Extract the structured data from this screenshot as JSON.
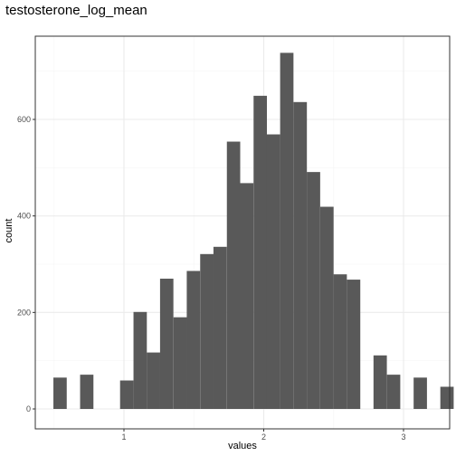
{
  "chart_data": {
    "type": "bar",
    "title": "testosterone_log_mean",
    "xlabel": "values",
    "ylabel": "count",
    "xlim": [
      0.5,
      3.2
    ],
    "ylim": [
      0,
      740
    ],
    "x_ticks": [
      1,
      2,
      3
    ],
    "y_ticks": [
      0,
      200,
      400,
      600
    ],
    "grid": true,
    "bin_width": 0.0954,
    "bins": [
      {
        "x": 0.543,
        "count": 65
      },
      {
        "x": 0.638,
        "count": 0
      },
      {
        "x": 0.734,
        "count": 71
      },
      {
        "x": 0.829,
        "count": 0
      },
      {
        "x": 0.925,
        "count": 0
      },
      {
        "x": 1.02,
        "count": 59
      },
      {
        "x": 1.116,
        "count": 201
      },
      {
        "x": 1.211,
        "count": 117
      },
      {
        "x": 1.306,
        "count": 270
      },
      {
        "x": 1.402,
        "count": 190
      },
      {
        "x": 1.497,
        "count": 286
      },
      {
        "x": 1.593,
        "count": 321
      },
      {
        "x": 1.688,
        "count": 336
      },
      {
        "x": 1.784,
        "count": 554
      },
      {
        "x": 1.879,
        "count": 468
      },
      {
        "x": 1.975,
        "count": 649
      },
      {
        "x": 2.07,
        "count": 569
      },
      {
        "x": 2.165,
        "count": 738
      },
      {
        "x": 2.261,
        "count": 636
      },
      {
        "x": 2.356,
        "count": 491
      },
      {
        "x": 2.452,
        "count": 419
      },
      {
        "x": 2.547,
        "count": 279
      },
      {
        "x": 2.643,
        "count": 268
      },
      {
        "x": 2.738,
        "count": 0
      },
      {
        "x": 2.833,
        "count": 111
      },
      {
        "x": 2.929,
        "count": 71
      },
      {
        "x": 3.024,
        "count": 0
      },
      {
        "x": 3.12,
        "count": 65
      },
      {
        "x": 3.215,
        "count": 0
      },
      {
        "x": 3.311,
        "count": 46
      }
    ]
  },
  "colors": {
    "bar": "#595959",
    "panel_border": "#333333",
    "grid_major": "#ebebeb",
    "grid_minor": "#f5f5f5",
    "background": "#ffffff"
  }
}
